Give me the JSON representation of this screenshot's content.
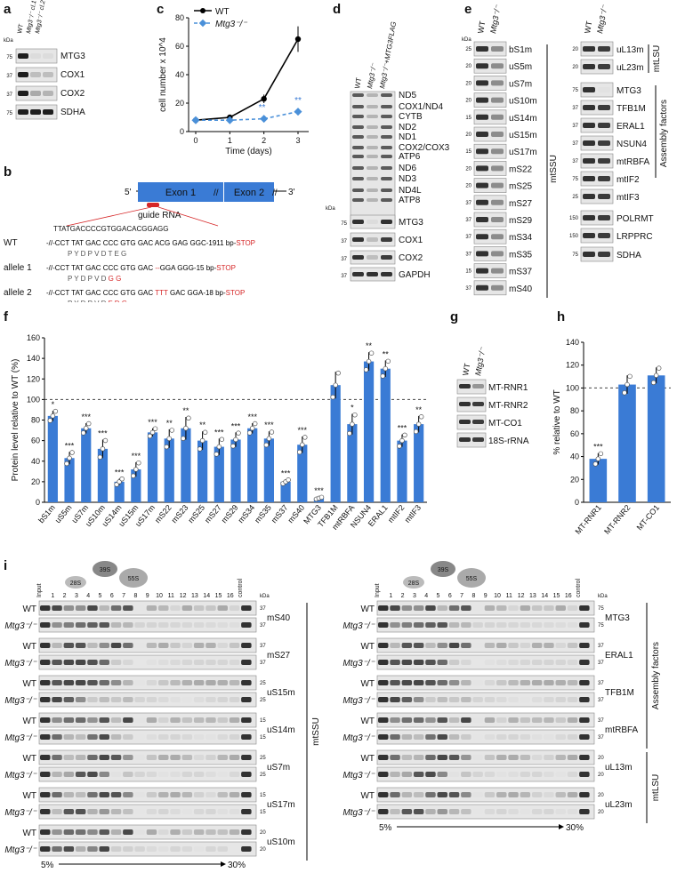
{
  "panels": {
    "a": {
      "letter": "a",
      "lanes": [
        "WT",
        "Mtg3⁻/⁻ cl.1",
        "Mtg3⁻/⁻ cl.2"
      ],
      "kda": [
        "75",
        "37",
        "37",
        "75"
      ],
      "kda_title": "kDa",
      "rows": [
        {
          "label": "MTG3",
          "wt": 1,
          "cl1": 0.05,
          "cl2": 0.05
        },
        {
          "label": "COX1",
          "wt": 1,
          "cl1": 0.2,
          "cl2": 0.2
        },
        {
          "label": "COX2",
          "wt": 1,
          "cl1": 0.3,
          "cl2": 0.25
        },
        {
          "label": "SDHA",
          "wt": 1,
          "cl1": 1,
          "cl2": 1
        }
      ]
    },
    "b": {
      "letter": "b",
      "five": "5'",
      "three": "3'",
      "exon1": "Exon 1",
      "exon2": "Exon 2",
      "break": "//",
      "guide_label": "guide RNA",
      "guide_seq": "TTATGACCCCGTGGACACGGAGG",
      "alleles": [
        {
          "name": "WT",
          "seq_pre": "-//-CCT TAT GAC CCC GTG GAC ACG GAG GGC",
          "seq_red": "",
          "seq_post": "-1911 bp-",
          "stop": "STOP",
          "aa": "P   Y   D   P   V   D   T   E   G",
          "aa_red": ""
        },
        {
          "name": "allele 1",
          "seq_pre": "-//-CCT TAT GAC CCC GTG GAC ",
          "seq_red": "--",
          "seq_post": "GGA GGG-15 bp-",
          "stop": "STOP",
          "aa": "P   Y   D   P   V   D",
          "aa_red": "G   G"
        },
        {
          "name": "allele 2",
          "seq_pre": "-//-CCT TAT GAC CCC GTG GAC ",
          "seq_red": "TTT",
          "seq_post": " GAC GGA-18 bp-",
          "stop": "STOP",
          "aa": "P   Y   D   P   V   D",
          "aa_red": "F   D   G"
        }
      ]
    },
    "c": {
      "letter": "c",
      "chart_data": {
        "type": "line",
        "x": [
          0,
          1,
          2,
          3
        ],
        "series": [
          {
            "name": "WT",
            "values": [
              8,
              10,
              23,
              65
            ],
            "errors": [
              1,
              1.5,
              3,
              9
            ],
            "color": "#000000"
          },
          {
            "name": "Mtg3⁻/⁻",
            "values": [
              8,
              8,
              9,
              14
            ],
            "errors": [
              1,
              1,
              1,
              2
            ],
            "color": "#4a90d9"
          }
        ],
        "xlabel": "Time (days)",
        "ylabel": "cell number x 10^4",
        "ylim": [
          0,
          80
        ],
        "yticks": [
          "0",
          "20",
          "40",
          "60",
          "80"
        ],
        "xticks": [
          "0",
          "1",
          "2",
          "3"
        ],
        "annotations": [
          "**",
          "**",
          "**"
        ]
      }
    },
    "d": {
      "letter": "d",
      "lanes": [
        "WT",
        "Mtg3⁻/⁻",
        "Mtg3⁻/⁻+MTG3FLAG"
      ],
      "labels_top": [
        "ND5",
        "COX1/ND4",
        "CYTB",
        "ND2",
        "ND1",
        "COX2/COX3",
        "ATP6",
        "ND6",
        "ND3",
        "ND4L",
        "ATP8"
      ],
      "labels_bottom": [
        "MTG3",
        "COX1",
        "COX2",
        "GAPDH"
      ],
      "kda_title": "kDa",
      "kda": [
        "75",
        "37",
        "37",
        "37"
      ]
    },
    "e": {
      "letter": "e",
      "lanes": [
        "WT",
        "Mtg3⁻/⁻"
      ],
      "left_rows": [
        {
          "kda": "25",
          "label": "bS1m"
        },
        {
          "kda": "20",
          "label": "uS5m"
        },
        {
          "kda": "20",
          "label": "uS7m"
        },
        {
          "kda": "20",
          "label": "uS10m"
        },
        {
          "kda": "15",
          "label": "uS14m"
        },
        {
          "kda": "20",
          "label": "uS15m"
        },
        {
          "kda": "15",
          "label": "uS17m"
        },
        {
          "kda": "20",
          "label": "mS22"
        },
        {
          "kda": "20",
          "label": "mS25"
        },
        {
          "kda": "37",
          "label": "mS27"
        },
        {
          "kda": "37",
          "label": "mS29"
        },
        {
          "kda": "37",
          "label": "mS34"
        },
        {
          "kda": "37",
          "label": "mS35"
        },
        {
          "kda": "15",
          "label": "mS37"
        },
        {
          "kda": "37",
          "label": "mS40"
        }
      ],
      "right_rows": [
        {
          "kda": "20",
          "label": "uL13m"
        },
        {
          "kda": "20",
          "label": "uL23m"
        },
        {
          "kda": "75",
          "label": "MTG3"
        },
        {
          "kda": "37",
          "label": "TFB1M"
        },
        {
          "kda": "37",
          "label": "ERAL1"
        },
        {
          "kda": "37",
          "label": "NSUN4"
        },
        {
          "kda": "37",
          "label": "mtRBFA"
        },
        {
          "kda": "75",
          "label": "mtIF2"
        },
        {
          "kda": "25",
          "label": "mtIF3"
        },
        {
          "kda": "150",
          "label": "POLRMT"
        },
        {
          "kda": "150",
          "label": "LRPPRC"
        },
        {
          "kda": "75",
          "label": "SDHA"
        }
      ],
      "group_mtssu": "mtSSU",
      "group_mtlsu": "mtLSU",
      "group_assembly": "Assembly factors",
      "kda_title": "kDa"
    },
    "f": {
      "letter": "f",
      "chart_data": {
        "type": "bar",
        "categories": [
          "bS1m",
          "uS5m",
          "uS7m",
          "uS10m",
          "uS14m",
          "uS15m",
          "uS17m",
          "mS22",
          "mS23",
          "mS25",
          "mS27",
          "mS29",
          "mS34",
          "mS35",
          "mS37",
          "mS40",
          "MTG3",
          "TFB1M",
          "mtRBFA",
          "NSUN4",
          "ERAL1",
          "mtIF2",
          "mtIF3"
        ],
        "values": [
          84,
          43,
          72,
          52,
          20,
          32,
          68,
          62,
          72,
          60,
          54,
          61,
          72,
          62,
          20,
          56,
          4,
          114,
          76,
          137,
          130,
          60,
          76
        ],
        "errors": [
          5,
          6,
          5,
          9,
          3,
          7,
          4,
          9,
          11,
          9,
          8,
          7,
          5,
          7,
          2,
          8,
          1,
          13,
          10,
          9,
          8,
          6,
          8
        ],
        "significance": [
          "*",
          "***",
          "***",
          "***",
          "***",
          "***",
          "***",
          "**",
          "**",
          "**",
          "***",
          "***",
          "***",
          "***",
          "***",
          "***",
          "***",
          "",
          "*",
          "**",
          "**",
          "***",
          "**"
        ],
        "ylabel": "Protein level relative to WT (%)",
        "ylim": [
          0,
          160
        ],
        "yticks": [
          "0",
          "20",
          "40",
          "60",
          "80",
          "100",
          "120",
          "140",
          "160"
        ],
        "reference_line": 100,
        "color": "#3a7bd5"
      }
    },
    "g": {
      "letter": "g",
      "lanes": [
        "WT",
        "Mtg3⁻/⁻"
      ],
      "rows": [
        "MT-RNR1",
        "MT-RNR2",
        "MT-CO1",
        "18S-rRNA"
      ]
    },
    "h": {
      "letter": "h",
      "chart_data": {
        "type": "bar",
        "categories": [
          "MT-RNR1",
          "MT-RNR2",
          "MT-CO1"
        ],
        "values": [
          38,
          103,
          111
        ],
        "errors": [
          5,
          8,
          7
        ],
        "significance": [
          "***",
          "",
          ""
        ],
        "ylabel": "% relative to WT",
        "ylim": [
          0,
          140
        ],
        "yticks": [
          "0",
          "20",
          "40",
          "60",
          "80",
          "100",
          "120",
          "140"
        ],
        "reference_line": 100,
        "color": "#3a7bd5"
      }
    },
    "i": {
      "letter": "i",
      "fractions": [
        "Input",
        "1",
        "2",
        "3",
        "4",
        "5",
        "6",
        "7",
        "8",
        "9",
        "10",
        "11",
        "12",
        "13",
        "14",
        "15",
        "16",
        "control"
      ],
      "ribosome_labels": [
        "28S",
        "39S",
        "55S"
      ],
      "gradient_start": "5%",
      "gradient_end": "30%",
      "kda_title": "kDa",
      "wt": "WT",
      "ko": "Mtg3⁻/⁻",
      "left_rows": [
        {
          "label": "mS40",
          "kda": [
            "37",
            "37"
          ]
        },
        {
          "label": "mS27",
          "kda": [
            "37",
            "37"
          ]
        },
        {
          "label": "uS15m",
          "kda": [
            "25",
            "25"
          ]
        },
        {
          "label": "uS14m",
          "kda": [
            "15",
            "15"
          ]
        },
        {
          "label": "uS7m",
          "kda": [
            "25",
            "25"
          ]
        },
        {
          "label": "uS17m",
          "kda": [
            "15",
            "15"
          ]
        },
        {
          "label": "uS10m",
          "kda": [
            "20",
            "20"
          ]
        }
      ],
      "right_rows": [
        {
          "label": "MTG3",
          "kda": [
            "75",
            "75"
          ]
        },
        {
          "label": "ERAL1",
          "kda": [
            "37",
            "37"
          ]
        },
        {
          "label": "TFB1M",
          "kda": [
            "37",
            "37"
          ]
        },
        {
          "label": "mtRBFA",
          "kda": [
            "37",
            "37"
          ]
        },
        {
          "label": "uL13m",
          "kda": [
            "20",
            "20"
          ]
        },
        {
          "label": "uL23m",
          "kda": [
            "20",
            "20"
          ]
        }
      ],
      "group_mtssu": "mtSSU",
      "group_assembly": "Assembly factors",
      "group_mtlsu": "mtLSU"
    }
  }
}
